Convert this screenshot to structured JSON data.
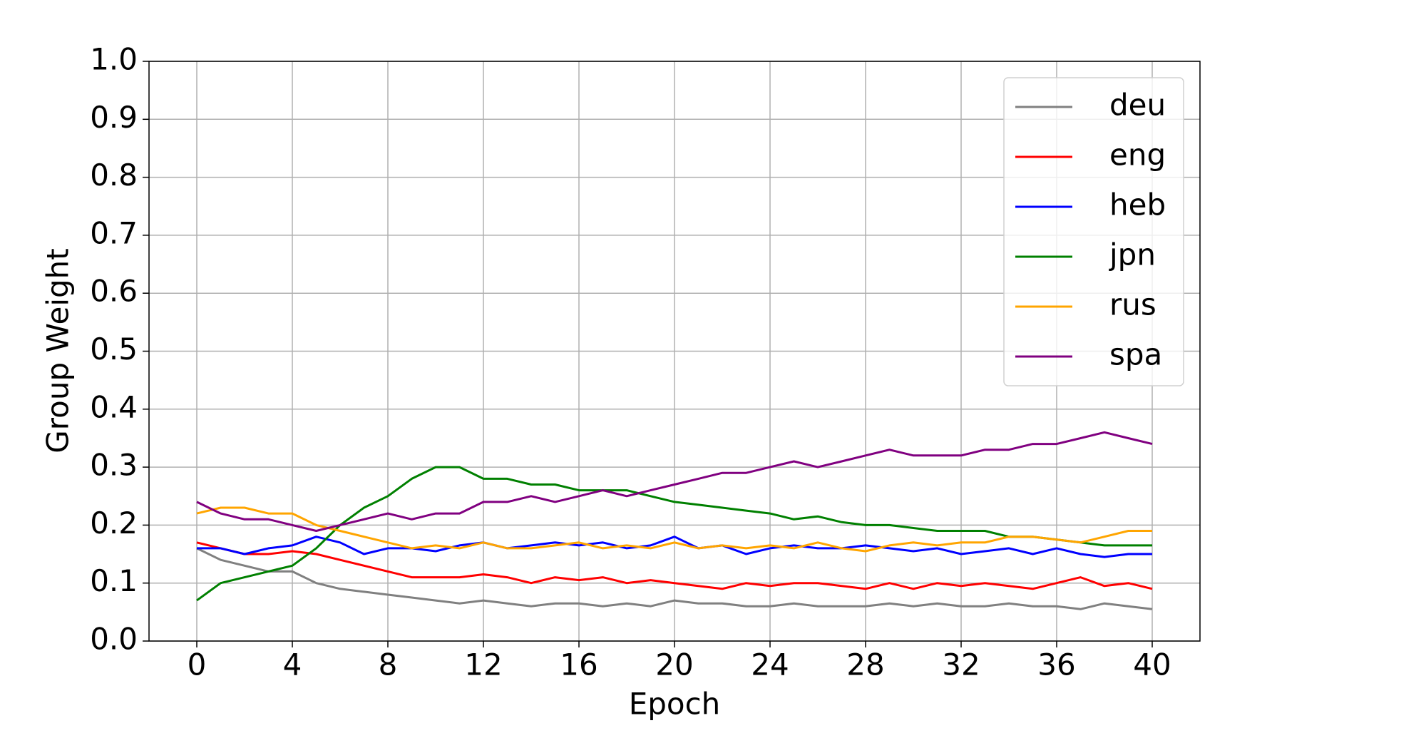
{
  "chart_data": {
    "type": "line",
    "xlabel": "Epoch",
    "ylabel": "Group Weight",
    "x": [
      0,
      1,
      2,
      3,
      4,
      5,
      6,
      7,
      8,
      9,
      10,
      11,
      12,
      13,
      14,
      15,
      16,
      17,
      18,
      19,
      20,
      21,
      22,
      23,
      24,
      25,
      26,
      27,
      28,
      29,
      30,
      31,
      32,
      33,
      34,
      35,
      36,
      37,
      38,
      39,
      40
    ],
    "series": [
      {
        "name": "deu",
        "color": "#808080",
        "values": [
          0.16,
          0.14,
          0.13,
          0.12,
          0.12,
          0.1,
          0.09,
          0.085,
          0.08,
          0.075,
          0.07,
          0.065,
          0.07,
          0.065,
          0.06,
          0.065,
          0.065,
          0.06,
          0.065,
          0.06,
          0.07,
          0.065,
          0.065,
          0.06,
          0.06,
          0.065,
          0.06,
          0.06,
          0.06,
          0.065,
          0.06,
          0.065,
          0.06,
          0.06,
          0.065,
          0.06,
          0.06,
          0.055,
          0.065,
          0.06,
          0.055
        ]
      },
      {
        "name": "eng",
        "color": "#ff0000",
        "values": [
          0.17,
          0.16,
          0.15,
          0.15,
          0.155,
          0.15,
          0.14,
          0.13,
          0.12,
          0.11,
          0.11,
          0.11,
          0.115,
          0.11,
          0.1,
          0.11,
          0.105,
          0.11,
          0.1,
          0.105,
          0.1,
          0.095,
          0.09,
          0.1,
          0.095,
          0.1,
          0.1,
          0.095,
          0.09,
          0.1,
          0.09,
          0.1,
          0.095,
          0.1,
          0.095,
          0.09,
          0.1,
          0.11,
          0.095,
          0.1,
          0.09
        ]
      },
      {
        "name": "heb",
        "color": "#0000ff",
        "values": [
          0.16,
          0.16,
          0.15,
          0.16,
          0.165,
          0.18,
          0.17,
          0.15,
          0.16,
          0.16,
          0.155,
          0.165,
          0.17,
          0.16,
          0.165,
          0.17,
          0.165,
          0.17,
          0.16,
          0.165,
          0.18,
          0.16,
          0.165,
          0.15,
          0.16,
          0.165,
          0.16,
          0.16,
          0.165,
          0.16,
          0.155,
          0.16,
          0.15,
          0.155,
          0.16,
          0.15,
          0.16,
          0.15,
          0.145,
          0.15,
          0.15
        ]
      },
      {
        "name": "jpn",
        "color": "#008000",
        "values": [
          0.07,
          0.1,
          0.11,
          0.12,
          0.13,
          0.16,
          0.2,
          0.23,
          0.25,
          0.28,
          0.3,
          0.3,
          0.28,
          0.28,
          0.27,
          0.27,
          0.26,
          0.26,
          0.26,
          0.25,
          0.24,
          0.235,
          0.23,
          0.225,
          0.22,
          0.21,
          0.215,
          0.205,
          0.2,
          0.2,
          0.195,
          0.19,
          0.19,
          0.19,
          0.18,
          0.18,
          0.175,
          0.17,
          0.165,
          0.165,
          0.165
        ]
      },
      {
        "name": "rus",
        "color": "#ffa500",
        "values": [
          0.22,
          0.23,
          0.23,
          0.22,
          0.22,
          0.2,
          0.19,
          0.18,
          0.17,
          0.16,
          0.165,
          0.16,
          0.17,
          0.16,
          0.16,
          0.165,
          0.17,
          0.16,
          0.165,
          0.16,
          0.17,
          0.16,
          0.165,
          0.16,
          0.165,
          0.16,
          0.17,
          0.16,
          0.155,
          0.165,
          0.17,
          0.165,
          0.17,
          0.17,
          0.18,
          0.18,
          0.175,
          0.17,
          0.18,
          0.19,
          0.19
        ]
      },
      {
        "name": "spa",
        "color": "#800080",
        "values": [
          0.24,
          0.22,
          0.21,
          0.21,
          0.2,
          0.19,
          0.2,
          0.21,
          0.22,
          0.21,
          0.22,
          0.22,
          0.24,
          0.24,
          0.25,
          0.24,
          0.25,
          0.26,
          0.25,
          0.26,
          0.27,
          0.28,
          0.29,
          0.29,
          0.3,
          0.31,
          0.3,
          0.31,
          0.32,
          0.33,
          0.32,
          0.32,
          0.32,
          0.33,
          0.33,
          0.34,
          0.34,
          0.35,
          0.36,
          0.35,
          0.34
        ]
      }
    ],
    "xlim": [
      -2,
      42
    ],
    "xticks": [
      0,
      4,
      8,
      12,
      16,
      20,
      24,
      28,
      32,
      36,
      40
    ],
    "ylim": [
      0,
      1
    ],
    "yticks": [
      {
        "value": 0,
        "label": "0.0"
      },
      0.1,
      0.2,
      0.3,
      0.4,
      0.5,
      0.6,
      0.7,
      0.8,
      0.9,
      {
        "value": 1,
        "label": "1.0"
      }
    ],
    "grid": true,
    "legend": "upper right"
  }
}
